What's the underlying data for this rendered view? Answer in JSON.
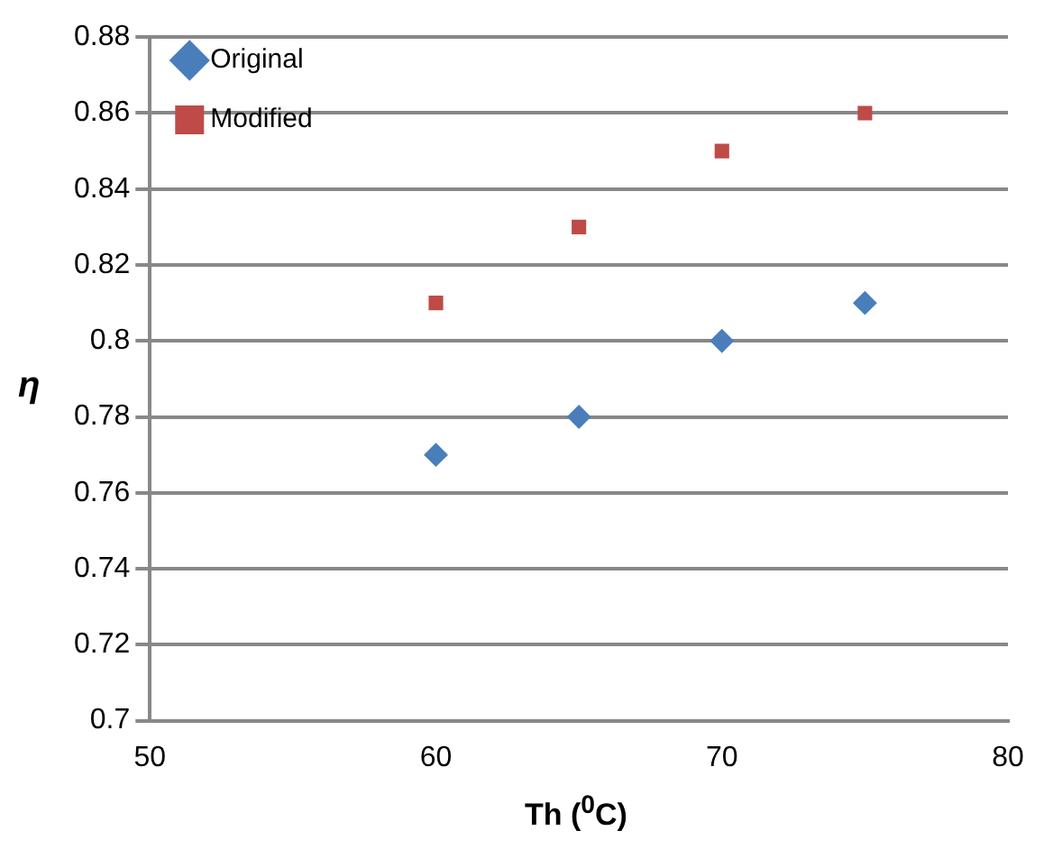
{
  "chart_data": {
    "type": "scatter",
    "xlabel": "Th ($^{0}$C)",
    "ylabel": "η",
    "xlim": [
      50,
      80
    ],
    "xticks": [
      50,
      60,
      70,
      80
    ],
    "ylim": [
      0.7,
      0.88
    ],
    "yticks": [
      0.7,
      0.72,
      0.74,
      0.76,
      0.78,
      0.8,
      0.82,
      0.84,
      0.86,
      0.88
    ],
    "grid": "y",
    "legend": "top left",
    "series": [
      {
        "name": "Original",
        "color": "#4a7ebb",
        "marker": "diamond",
        "x": [
          60,
          65,
          70,
          75
        ],
        "values": [
          0.77,
          0.78,
          0.8,
          0.81
        ]
      },
      {
        "name": "Modified",
        "color": "#be4b48",
        "marker": "square",
        "x": [
          60,
          65,
          70,
          75
        ],
        "values": [
          0.81,
          0.83,
          0.85,
          0.86
        ]
      }
    ]
  }
}
